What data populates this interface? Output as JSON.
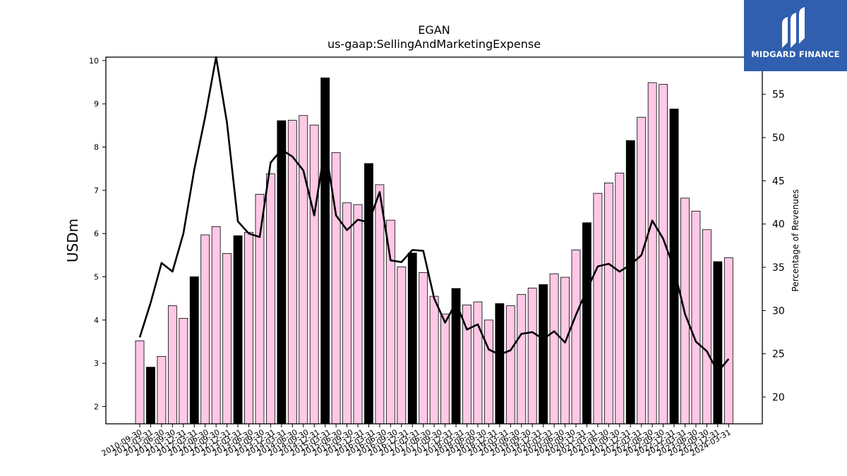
{
  "chart_data": {
    "type": "bar+line",
    "title": "EGAN",
    "subtitle": "us-gaap:SellingAndMarketingExpense",
    "ylabel": "USDm",
    "ylabel_right": "Percentage of Revenues",
    "ylim": [
      1.6,
      10.08
    ],
    "ylim_right": [
      16.9,
      59.3
    ],
    "yticks": [
      2,
      3,
      4,
      5,
      6,
      7,
      8,
      9,
      10
    ],
    "yticks_right": [
      20,
      25,
      30,
      35,
      40,
      45,
      50,
      55
    ],
    "x": [
      "2010-09-30",
      "2010-12-31",
      "2011-03-31",
      "2011-06-30",
      "2011-09-30",
      "2011-12-31",
      "2012-03-31",
      "2012-06-30",
      "2012-09-30",
      "2012-12-31",
      "2013-03-31",
      "2013-06-30",
      "2013-09-30",
      "2013-12-31",
      "2014-03-31",
      "2014-06-30",
      "2014-09-30",
      "2014-12-31",
      "2015-03-31",
      "2015-06-30",
      "2015-09-30",
      "2015-12-31",
      "2016-03-31",
      "2016-06-30",
      "2016-09-30",
      "2016-12-31",
      "2017-03-31",
      "2017-06-30",
      "2017-09-30",
      "2017-12-31",
      "2018-03-31",
      "2018-06-30",
      "2018-09-30",
      "2018-12-31",
      "2019-03-31",
      "2019-06-30",
      "2019-09-30",
      "2019-12-31",
      "2020-03-31",
      "2020-06-30",
      "2020-09-30",
      "2020-12-31",
      "2021-03-31",
      "2021-06-30",
      "2021-09-30",
      "2021-12-31",
      "2022-03-31",
      "2022-06-30",
      "2022-09-30",
      "2022-12-31",
      "2023-03-31",
      "2023-06-30",
      "2023-09-30",
      "2023-12-31",
      "2024-03-31"
    ],
    "x_tick_labels": [
      "2010-09-30",
      "2011-03-31",
      "2011-06-30",
      "2011-09-30",
      "2011-12-31",
      "2012-03-31",
      "2012-06-30",
      "2012-09-30",
      "2012-12-31",
      "2013-03-31",
      "2013-06-30",
      "2013-09-30",
      "2013-12-31",
      "2014-03-31",
      "2014-06-30",
      "2014-09-30",
      "2014-12-31",
      "2015-03-31",
      "2015-06-30",
      "2015-09-30",
      "2015-12-31",
      "2016-03-31",
      "2016-06-30",
      "2016-09-30",
      "2016-12-31",
      "2017-03-31",
      "2017-06-30",
      "2017-09-30",
      "2017-12-31",
      "2018-03-31",
      "2018-06-30",
      "2018-09-30",
      "2018-12-31",
      "2019-03-31",
      "2019-06-30",
      "2019-09-30",
      "2019-12-31",
      "2020-03-31",
      "2020-06-30",
      "2020-09-30",
      "2020-12-31",
      "2021-03-31",
      "2021-06-30",
      "2021-09-30",
      "2021-12-31",
      "2022-03-31",
      "2022-06-30",
      "2022-09-30",
      "2022-12-31",
      "2023-03-31",
      "2023-06-30",
      "2023-09-30",
      "2023-12-31",
      "2024-03-31"
    ],
    "series": [
      {
        "type": "bar",
        "values": [
          3.52,
          2.91,
          3.16,
          4.33,
          4.04,
          5.0,
          5.97,
          6.16,
          5.54,
          5.95,
          6.03,
          6.91,
          7.38,
          8.61,
          8.62,
          8.73,
          8.51,
          9.6,
          7.87,
          6.71,
          6.67,
          7.62,
          7.13,
          6.31,
          5.23,
          5.55,
          5.1,
          4.55,
          4.14,
          4.73,
          4.35,
          4.42,
          4.0,
          4.38,
          4.33,
          4.59,
          4.74,
          4.82,
          5.07,
          4.99,
          5.62,
          6.25,
          6.93,
          7.17,
          7.4,
          8.15,
          8.69,
          9.49,
          9.45,
          8.88,
          6.82,
          6.52,
          6.09,
          5.35,
          5.44
        ],
        "fill": "#ffc8e6",
        "highlight_fill": "#000000",
        "highlight_indices": [
          1,
          5,
          9,
          13,
          17,
          21,
          25,
          29,
          33,
          37,
          41,
          45,
          49,
          53
        ]
      },
      {
        "type": "line",
        "axis": "right",
        "values": [
          26.9,
          30.9,
          35.5,
          34.5,
          38.9,
          46.3,
          52.4,
          59.3,
          51.7,
          40.3,
          38.9,
          38.5,
          47.1,
          48.6,
          47.8,
          46.2,
          41.0,
          49.0,
          41.0,
          39.3,
          40.5,
          40.2,
          43.7,
          35.8,
          35.6,
          37.0,
          36.9,
          31.4,
          28.6,
          30.9,
          27.8,
          28.4,
          25.5,
          24.9,
          25.4,
          27.3,
          27.5,
          26.7,
          27.6,
          26.3,
          29.5,
          32.4,
          35.1,
          35.4,
          34.5,
          35.3,
          36.4,
          40.4,
          38.3,
          34.8,
          29.6,
          26.4,
          25.3,
          22.9,
          24.4
        ],
        "color": "#000000"
      }
    ],
    "grid": false,
    "legend": "none"
  },
  "logo": {
    "text": "MIDGARD FINANCE",
    "colors": {
      "background": "#2f5fae",
      "foreground": "#ffffff"
    },
    "icon": "midgard-logo-icon"
  }
}
